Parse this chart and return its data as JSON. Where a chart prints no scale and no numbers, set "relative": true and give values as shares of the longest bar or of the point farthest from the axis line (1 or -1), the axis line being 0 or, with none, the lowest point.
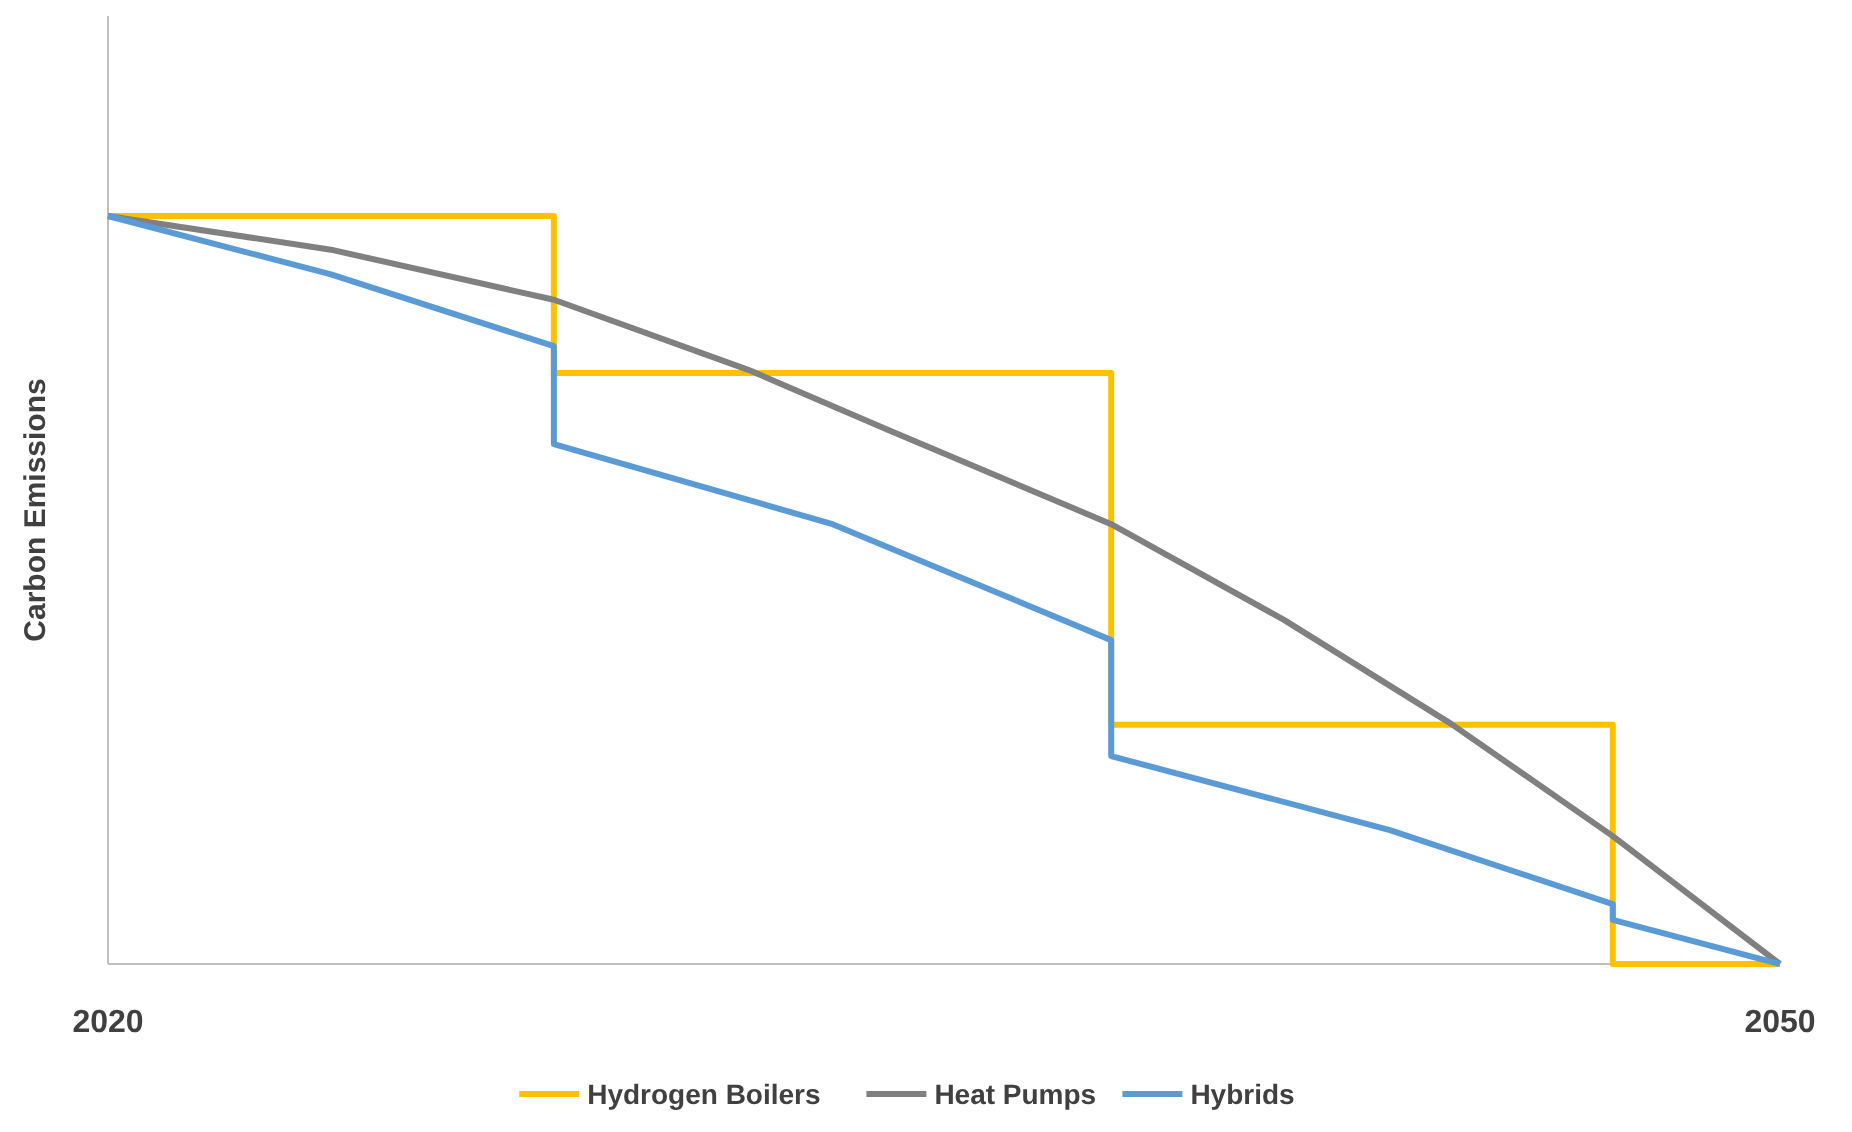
{
  "chart_data": {
    "type": "line",
    "relative": true,
    "ylabel": "Carbon Emissions",
    "xlim": [
      2020,
      2050
    ],
    "xticks": [
      2020,
      2050
    ],
    "legend": "bottom",
    "grid": false,
    "series": [
      {
        "name": "Hydrogen Boilers",
        "type": "step",
        "color": "#ffc000",
        "x": [
          2020,
          2028,
          2038,
          2047,
          2050
        ],
        "values": [
          1,
          0.79,
          0.32,
          0,
          0
        ]
      },
      {
        "name": "Heat Pumps",
        "type": "line",
        "color": "#808080",
        "x": [
          2020,
          2024,
          2028,
          2031.5,
          2034,
          2038,
          2041.1,
          2044.1,
          2047,
          2050
        ],
        "values": [
          1,
          0.955,
          0.888,
          0.794,
          0.714,
          0.588,
          0.46,
          0.321,
          0.171,
          0
        ]
      },
      {
        "name": "Hybrids",
        "type": "line",
        "color": "#5b9bd5",
        "x": [
          2020,
          2024,
          2028,
          2028,
          2033,
          2038,
          2038,
          2043,
          2047,
          2047,
          2050
        ],
        "values": [
          1,
          0.922,
          0.826,
          0.695,
          0.588,
          0.433,
          0.278,
          0.179,
          0.08,
          0.059,
          0
        ]
      }
    ]
  }
}
